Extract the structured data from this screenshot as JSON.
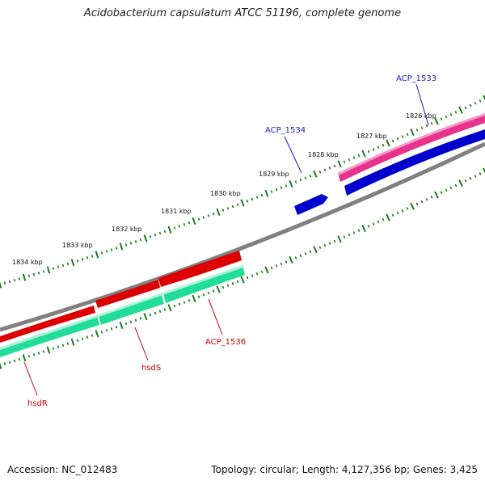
{
  "title": "Acidobacterium capsulatum ATCC 51196, complete genome",
  "footer": {
    "accession": "Accession: NC_012483",
    "topology": "Topology: circular; Length: 4,127,356 bp; Genes: 3,425"
  },
  "colors": {
    "backbone": "#808080",
    "tick": "#1a7a1a",
    "forward_cds": "#e8338c",
    "forward_gene": "#0000cc",
    "reverse_cds": "#dd0000",
    "reverse_gene": "#22dd99",
    "label_blue": "#1a1acc",
    "label_red": "#cc0000"
  },
  "kbp_labels": [
    "1826 kbp",
    "1827 kbp",
    "1828 kbp",
    "1829 kbp",
    "1830 kbp",
    "1831 kbp",
    "1832 kbp",
    "1833 kbp",
    "1834 kbp"
  ],
  "genes": [
    {
      "name": "ACP_1533",
      "strand": "+",
      "color": "blue"
    },
    {
      "name": "ACP_1534",
      "strand": "+",
      "color": "blue"
    },
    {
      "name": "ACP_1536",
      "strand": "-",
      "color": "red"
    },
    {
      "name": "hsdS",
      "strand": "-",
      "color": "red"
    },
    {
      "name": "hsdR",
      "strand": "-",
      "color": "red"
    }
  ]
}
